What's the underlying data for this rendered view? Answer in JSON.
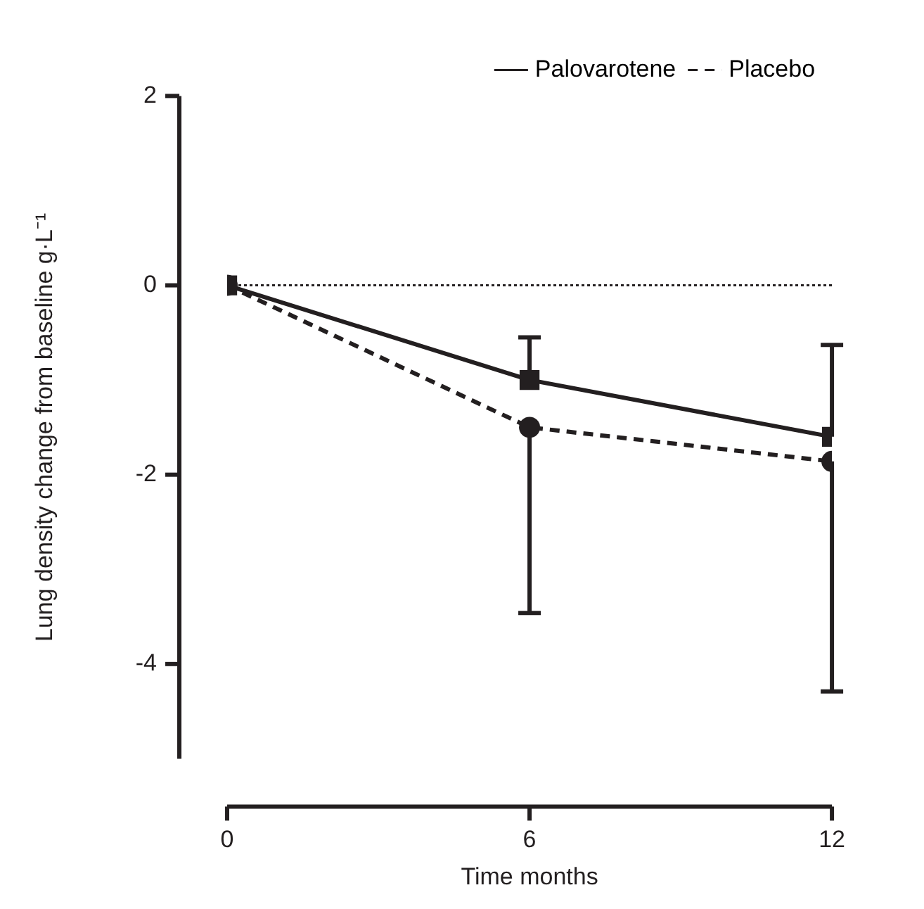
{
  "chart_data": {
    "type": "line",
    "xlabel": "Time months",
    "ylabel": "Lung density change from baseline g·L⁻¹",
    "x": [
      0,
      6,
      12
    ],
    "xlim": [
      0,
      12
    ],
    "xticks": [
      0,
      6,
      12
    ],
    "ylim": [
      -5,
      2
    ],
    "yticks": [
      2,
      0,
      -2,
      -4
    ],
    "legend": "top right",
    "grid": false,
    "series": [
      {
        "name": "Palovarotene",
        "color": "#231f20",
        "values": [
          0,
          -1.0,
          -1.6
        ],
        "errors": [
          null,
          [
            -1.0,
            -0.55
          ],
          [
            -1.6,
            -0.63
          ]
        ],
        "marker": "square",
        "line_style": "solid"
      },
      {
        "name": "Placebo",
        "color": "#231f20",
        "values": [
          0,
          -1.5,
          -1.86
        ],
        "errors": [
          null,
          [
            -3.46,
            -1.5
          ],
          [
            -4.29,
            -1.86
          ]
        ],
        "marker": "circle",
        "line_style": "dashed"
      }
    ],
    "ref_lines": [
      {
        "axis": "y",
        "value": 0,
        "line_style": "dotted",
        "color": "#231f20"
      }
    ]
  }
}
